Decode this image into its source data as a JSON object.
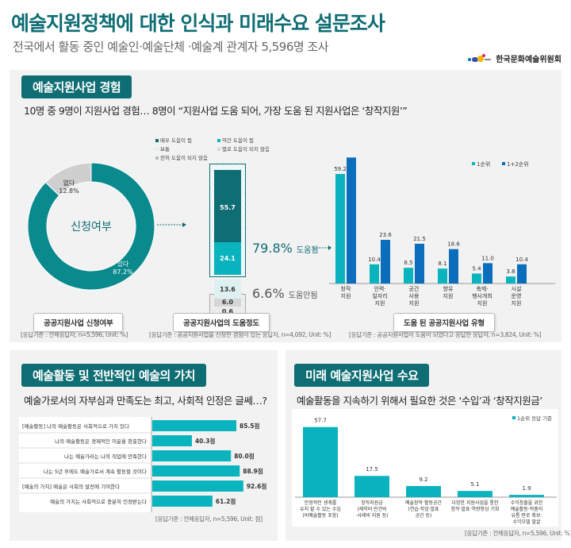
{
  "header": {
    "title": "예술지원정책에 대한 인식과 미래수요 설문조사",
    "subtitle": "전국에서 활동 중인 예술인·예술단체 ·예술계 관계자 5,596명 조사",
    "logo_text": "한국문화예술위원회"
  },
  "colors": {
    "teal_dark": "#0f6d74",
    "teal": "#0ab4be",
    "blue": "#0a6ebd",
    "gray": "#d0d0d0"
  },
  "section1": {
    "title": "예술지원사업 경험",
    "lead": "10명 중 9명이 지원사업 경험…  8명이 “지원사업 도움 되어, 가장 도움 된 지원사업은 ‘창작지원’”",
    "captions": [
      "공공지원사업 신청여부",
      "공공지원사업의 도움정도",
      "도움 된 공공지원사업 유형"
    ],
    "notes": [
      "[응답기준 : 전체응답자, n=5,596, Unit: %]",
      "[응답기준 : 공공지원사업을 신청한 경험이 있는 응답자, n=4,092, Unit: %]",
      "[응답기준 : 공공지원사업이 도움이 되었다고 응답한 응답자, n=3,824, Unit: %]"
    ],
    "helped_label": "79.8%",
    "helped_text": "도움됨",
    "not_helped_label": "6.6%",
    "not_helped_text": "도움안됨"
  },
  "chart_data": [
    {
      "type": "pie",
      "title": "신청여부",
      "slices": [
        {
          "label": "있다",
          "value": 87.2,
          "color": "#0b8a8e"
        },
        {
          "label": "없다",
          "value": 12.8,
          "color": "#cfcfcf"
        }
      ]
    },
    {
      "type": "bar",
      "stacked": true,
      "legend": [
        "매우 도움이 됨",
        "약간 도움이 됨",
        "보통",
        "별로 도움이 되지 않음",
        "전혀 도움이 되지 않음"
      ],
      "values": [
        55.7,
        24.1,
        13.6,
        6.0,
        0.6
      ],
      "colors": [
        "#0f6d74",
        "#0ab4be",
        "#dff0f1",
        "#d6d6d6",
        "#e6e6e6"
      ]
    },
    {
      "type": "bar",
      "categories": [
        "창작\n지원",
        "인력·\n일자리\n지원",
        "공간\n사용\n지원",
        "향유\n지원",
        "축제·\n행사개최\n지원",
        "시설\n운영\n지원"
      ],
      "series": [
        {
          "name": "1순위",
          "values": [
            59.2,
            10.4,
            8.5,
            8.1,
            5.4,
            3.8
          ],
          "color": "#0ab4be"
        },
        {
          "name": "1+2순위",
          "values": [
            68.1,
            23.6,
            21.5,
            18.6,
            11.0,
            10.4
          ],
          "color": "#0a6ebd"
        }
      ],
      "legend": "top-right"
    },
    {
      "type": "bar",
      "orientation": "horizontal",
      "title": "예술가로서의 자부심과 만족도는 최고, 사회적 인정은 글쎄…?",
      "categories": [
        "[예술활동] 나의 예술활동은 사회적으로 가치 있다",
        "나의 예술활동은 경제적인 이윤을 창출한다",
        "나는 예술가라는 나의 직업에 만족한다",
        "나는 5년 후에도 예술가로서 계속 활동할 것이다",
        "[예술의 가치] 예술은 사회의 발전에 기여한다",
        "예술의 가치는 사회적으로 충분히 인정받는다"
      ],
      "values": [
        85.5,
        40.3,
        80.0,
        88.9,
        92.6,
        61.2
      ],
      "value_labels": [
        "85.5점",
        "40.3점",
        "80.0점",
        "88.9점",
        "92.6점",
        "61.2점"
      ],
      "note": "[응답기준 : 전체응답자, n=5,596, Unit: 점]"
    },
    {
      "type": "bar",
      "title": "예술활동을 지속하기 위해서 필요한 것은 ‘수입’과 ‘창작지원금’",
      "categories": [
        "안정적인 생계를\n유지 할 수 있는 수입\n(비예술활동 포함)",
        "창작지원금\n(제작비·인건비\n·사례비 지원 등)",
        "예술창작·활동공간\n(연습·작업·발표\n공간 등)",
        "다양한 지원사업을 통한\n창작·발표·역량향상 기회",
        "수익창출을 위한\n예술활동·작품의\n유통 판로 확보·\n수익모델 발굴"
      ],
      "series": [
        {
          "name": "1순위 응답 기준",
          "values": [
            57.7,
            17.5,
            9.2,
            5.1,
            1.9
          ]
        }
      ],
      "legend": "top-right",
      "note": "[응답기준 : 전체응답자, n=5,596, Unit: %]"
    }
  ],
  "section2": {
    "title": "예술활동 및 전반적인 예술의 가치"
  },
  "section3": {
    "title": "미래 예술지원사업 수요"
  }
}
